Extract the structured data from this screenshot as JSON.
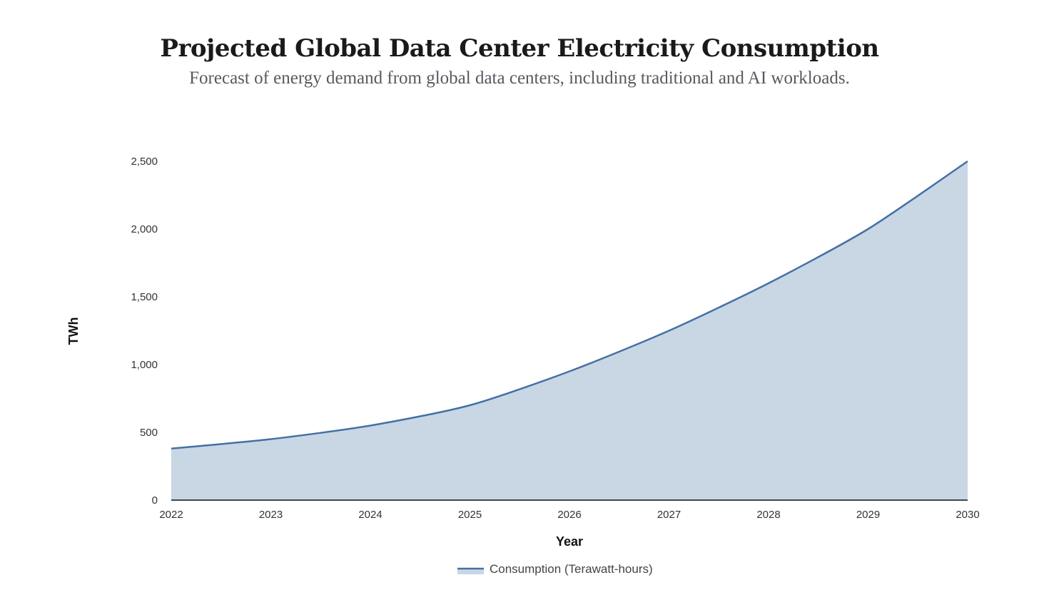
{
  "chart_data": {
    "type": "area",
    "title": "Projected Global Data Center Electricity Consumption",
    "subtitle": "Forecast of energy demand from global data centers, including traditional and AI workloads.",
    "xlabel": "Year",
    "ylabel": "TWh",
    "categories": [
      "2022",
      "2023",
      "2024",
      "2025",
      "2026",
      "2027",
      "2028",
      "2029",
      "2030"
    ],
    "series": [
      {
        "name": "Consumption (Terawatt-hours)",
        "values": [
          380,
          450,
          550,
          700,
          950,
          1250,
          1600,
          2000,
          2500
        ]
      }
    ],
    "ylim": [
      0,
      2500
    ],
    "yticks": [
      0,
      500,
      1000,
      1500,
      2000,
      2500
    ],
    "ytick_labels": [
      "0",
      "500",
      "1,000",
      "1,500",
      "2,000",
      "2,500"
    ],
    "grid": false,
    "legend": "bottom-center",
    "colors": {
      "line": "#4470a5",
      "fill": "#c9d7e4",
      "axis": "#111111"
    }
  }
}
